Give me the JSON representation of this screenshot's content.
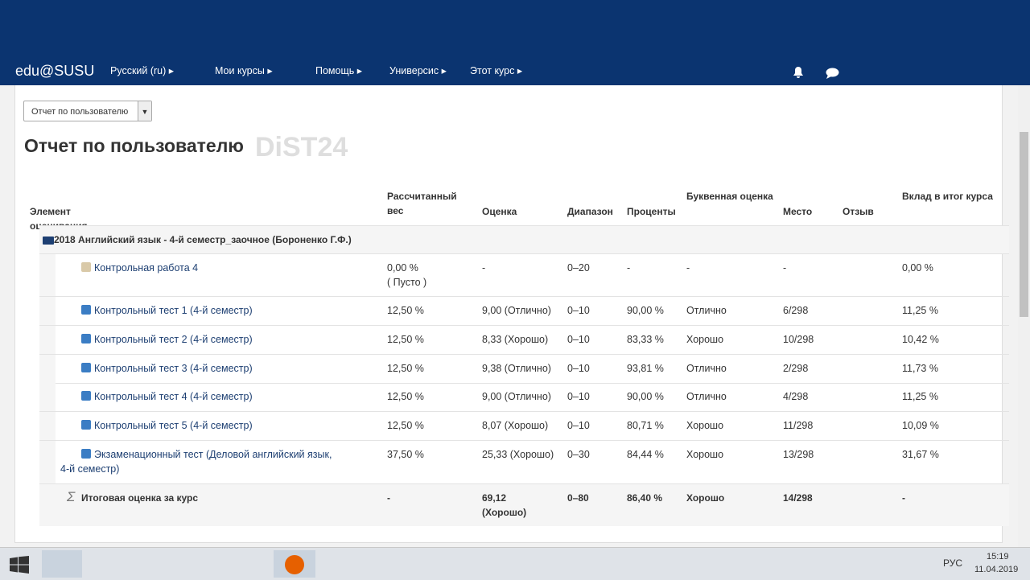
{
  "nav": {
    "brand": "edu@SUSU",
    "items": [
      "Русский (ru)",
      "Мои курсы",
      "Помощь",
      "Универсис",
      "Этот курс"
    ]
  },
  "report_select": "Отчет по пользователю",
  "title": "Отчет по пользователю",
  "watermark": "DiST24",
  "table": {
    "headers": [
      "Элемент оценивания",
      "Рассчитанный вес",
      "Оценка",
      "Диапазон",
      "Проценты",
      "Буквенная оценка",
      "Место",
      "Отзыв",
      "Вклад в итог курса"
    ],
    "category": "2018 Английский язык - 4-й семестр_заочное (Бороненко Г.Ф.)",
    "rows": [
      {
        "item": "Контрольная работа 4",
        "weight": "0,00 %",
        "weight_note": "( Пусто )",
        "grade": "-",
        "range": "0–20",
        "percent": "-",
        "letter": "-",
        "rank": "-",
        "contribution": "0,00 %"
      },
      {
        "item": "Контрольный тест 1 (4-й семестр)",
        "weight": "12,50 %",
        "grade": "9,00 (Отлично)",
        "range": "0–10",
        "percent": "90,00 %",
        "letter": "Отлично",
        "rank": "6/298",
        "contribution": "11,25 %"
      },
      {
        "item": "Контрольный тест 2 (4-й семестр)",
        "weight": "12,50 %",
        "grade": "8,33 (Хорошо)",
        "range": "0–10",
        "percent": "83,33 %",
        "letter": "Хорошо",
        "rank": "10/298",
        "contribution": "10,42 %"
      },
      {
        "item": "Контрольный тест 3 (4-й семестр)",
        "weight": "12,50 %",
        "grade": "9,38 (Отлично)",
        "range": "0–10",
        "percent": "93,81 %",
        "letter": "Отлично",
        "rank": "2/298",
        "contribution": "11,73 %"
      },
      {
        "item": "Контрольный тест 4 (4-й семестр)",
        "weight": "12,50 %",
        "grade": "9,00 (Отлично)",
        "range": "0–10",
        "percent": "90,00 %",
        "letter": "Отлично",
        "rank": "4/298",
        "contribution": "11,25 %"
      },
      {
        "item": "Контрольный тест 5 (4-й семестр)",
        "weight": "12,50 %",
        "grade": "8,07 (Хорошо)",
        "range": "0–10",
        "percent": "80,71 %",
        "letter": "Хорошо",
        "rank": "11/298",
        "contribution": "10,09 %"
      },
      {
        "item": "Экзаменационный тест (Деловой английский язык, 4-й семестр)",
        "weight": "37,50 %",
        "grade": "25,33 (Хорошо)",
        "range": "0–30",
        "percent": "84,44 %",
        "letter": "Хорошо",
        "rank": "13/298",
        "contribution": "31,67 %"
      }
    ],
    "total": {
      "item": "Итоговая оценка за курс",
      "weight": "-",
      "grade": "69,12 (Хорошо)",
      "range": "0–80",
      "percent": "86,40 %",
      "letter": "Хорошо",
      "rank": "14/298",
      "contribution": "-"
    }
  },
  "taskbar": {
    "language": "РУС",
    "time": "15:19",
    "date": "11.04.2019"
  }
}
